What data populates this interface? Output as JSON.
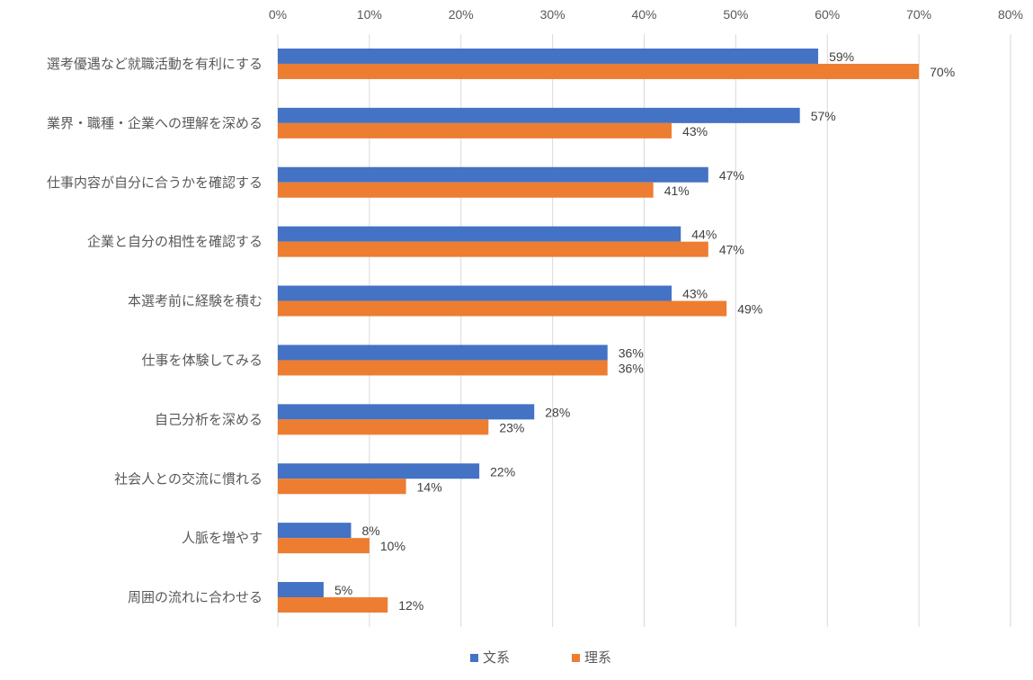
{
  "chart_data": {
    "type": "bar",
    "orientation": "horizontal",
    "categories": [
      "選考優遇など就職活動を有利にする",
      "業界・職種・企業への理解を深める",
      "仕事内容が自分に合うかを確認する",
      "企業と自分の相性を確認する",
      "本選考前に経験を積む",
      "仕事を体験してみる",
      "自己分析を深める",
      "社会人との交流に慣れる",
      "人脈を増やす",
      "周囲の流れに合わせる"
    ],
    "series": [
      {
        "name": "文系",
        "color": "#4472C4",
        "values": [
          59,
          57,
          47,
          44,
          43,
          36,
          28,
          22,
          8,
          5
        ]
      },
      {
        "name": "理系",
        "color": "#ED7D31",
        "values": [
          70,
          43,
          41,
          47,
          49,
          36,
          23,
          14,
          10,
          12
        ]
      }
    ],
    "x_ticks": [
      "0%",
      "10%",
      "20%",
      "30%",
      "40%",
      "50%",
      "60%",
      "70%",
      "80%"
    ],
    "xlim": [
      0,
      80
    ],
    "x_axis_position": "top",
    "value_format": "percent",
    "grid": true,
    "gridline_color": "#D9D9D9",
    "legend_position": "bottom"
  }
}
